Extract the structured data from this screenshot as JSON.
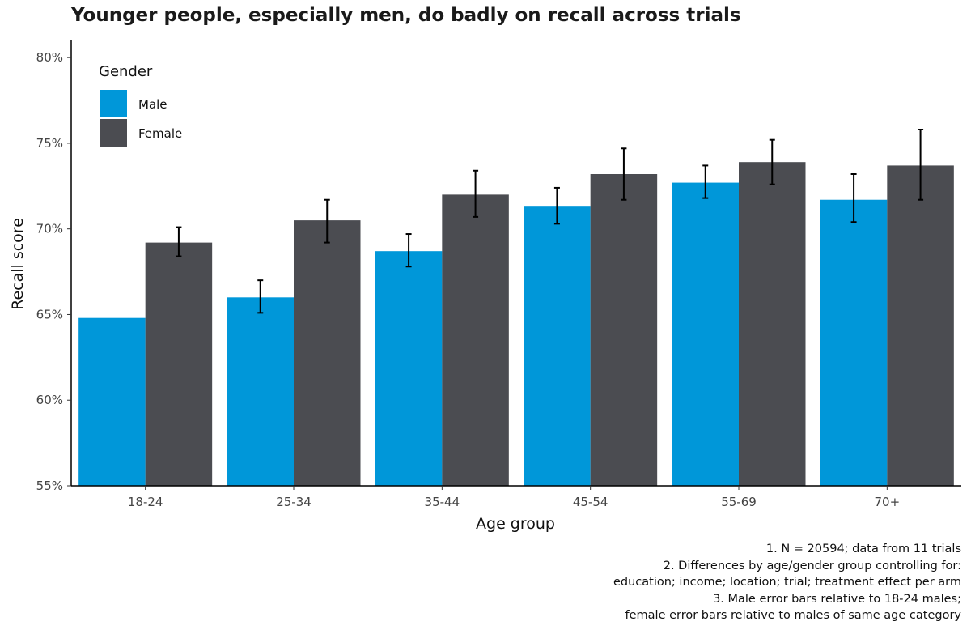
{
  "chart_data": {
    "type": "bar",
    "title": "Younger people, especially men, do badly on recall across trials",
    "xlabel": "Age group",
    "ylabel": "Recall score",
    "ylim": [
      55,
      81
    ],
    "yticks": [
      55,
      60,
      65,
      70,
      75,
      80
    ],
    "ytick_labels": [
      "55%",
      "60%",
      "65%",
      "70%",
      "75%",
      "80%"
    ],
    "categories": [
      "18-24",
      "25-34",
      "35-44",
      "45-54",
      "55-69",
      "70+"
    ],
    "series": [
      {
        "name": "Male",
        "color": "#0097D9",
        "values": [
          64.8,
          66.0,
          68.7,
          71.3,
          72.7,
          71.7
        ],
        "error_low": [
          null,
          65.1,
          67.8,
          70.3,
          71.8,
          70.4
        ],
        "error_high": [
          null,
          67.0,
          69.7,
          72.4,
          73.7,
          73.2
        ]
      },
      {
        "name": "Female",
        "color": "#4B4C51",
        "values": [
          69.2,
          70.5,
          72.0,
          73.2,
          73.9,
          73.7
        ],
        "error_low": [
          68.4,
          69.2,
          70.7,
          71.7,
          72.6,
          71.7
        ],
        "error_high": [
          70.1,
          71.7,
          73.4,
          74.7,
          75.2,
          75.8
        ]
      }
    ],
    "legend": {
      "title": "Gender",
      "position": "top-left"
    },
    "grid": false
  },
  "notes": [
    "1. N = 20594; data from 11 trials",
    "2. Differences by age/gender group controlling for:",
    "education; income; location; trial; treatment effect per arm",
    "3. Male error bars relative to 18-24 males;",
    "female error bars relative to males of same age category"
  ]
}
